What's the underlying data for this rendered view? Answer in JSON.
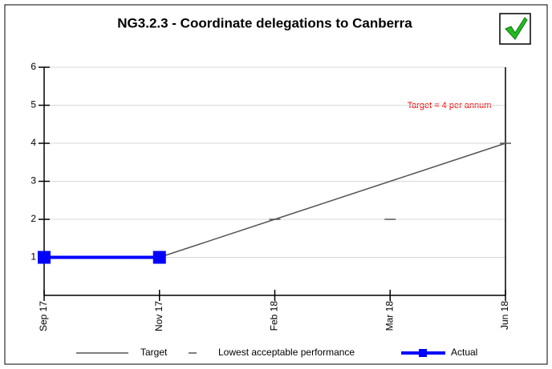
{
  "chart_data": {
    "type": "line",
    "title": "NG3.2.3 - Coordinate delegations to Canberra",
    "annotation": "Target = 4 per annum",
    "categories": [
      "Sep 17",
      "Nov 17",
      "Feb 18",
      "Mar 18",
      "Jun 18"
    ],
    "series": [
      {
        "name": "Target",
        "color": "#555555",
        "style": "line",
        "values": [
          null,
          1,
          2,
          3,
          4
        ]
      },
      {
        "name": "Lowest acceptable performance",
        "color": "#555555",
        "style": "dash",
        "values": [
          null,
          null,
          2,
          2,
          4
        ]
      },
      {
        "name": "Actual",
        "color": "#0000ff",
        "style": "line-marker",
        "values": [
          1,
          1,
          null,
          null,
          null
        ]
      }
    ],
    "ylim": [
      0,
      6
    ],
    "yticks": [
      1,
      2,
      3,
      4,
      5,
      6
    ],
    "grid": true,
    "legend": "bottom"
  }
}
